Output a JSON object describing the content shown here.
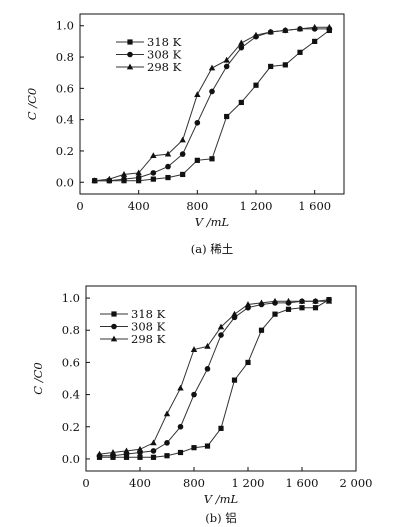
{
  "chart_data": [
    {
      "type": "line",
      "xlabel": "V /mL",
      "ylabel": "C /C0",
      "caption": "(a) 稀土",
      "xlim": [
        0,
        1800
      ],
      "ylim": [
        0,
        1.0
      ],
      "xticks": [
        {
          "v": 0,
          "label": "0"
        },
        {
          "v": 400,
          "label": "400"
        },
        {
          "v": 800,
          "label": "800"
        },
        {
          "v": 1200,
          "label": "1 200"
        },
        {
          "v": 1600,
          "label": "1 600"
        }
      ],
      "yticks": [
        {
          "v": 0,
          "label": "0.0"
        },
        {
          "v": 0.2,
          "label": "0.2"
        },
        {
          "v": 0.4,
          "label": "0.4"
        },
        {
          "v": 0.6,
          "label": "0.6"
        },
        {
          "v": 0.8,
          "label": "0.8"
        },
        {
          "v": 1.0,
          "label": "1.0"
        }
      ],
      "legend_position": "top-left",
      "series": [
        {
          "name": "318 K",
          "marker": "square",
          "x": [
            100,
            200,
            300,
            400,
            500,
            600,
            700,
            800,
            900,
            1000,
            1100,
            1200,
            1300,
            1400,
            1500,
            1600,
            1700
          ],
          "y": [
            0.01,
            0.01,
            0.01,
            0.01,
            0.02,
            0.03,
            0.05,
            0.14,
            0.15,
            0.42,
            0.51,
            0.62,
            0.74,
            0.75,
            0.83,
            0.9,
            0.97
          ]
        },
        {
          "name": "308 K",
          "marker": "circle",
          "x": [
            100,
            200,
            300,
            400,
            500,
            600,
            700,
            800,
            900,
            1000,
            1100,
            1200,
            1300,
            1400,
            1500,
            1600,
            1700
          ],
          "y": [
            0.01,
            0.01,
            0.02,
            0.03,
            0.06,
            0.1,
            0.18,
            0.38,
            0.58,
            0.74,
            0.86,
            0.93,
            0.96,
            0.97,
            0.98,
            0.98,
            0.98
          ]
        },
        {
          "name": "298 K",
          "marker": "triangle",
          "x": [
            100,
            200,
            300,
            400,
            500,
            600,
            700,
            800,
            900,
            1000,
            1100,
            1200,
            1300,
            1400,
            1500,
            1600,
            1700
          ],
          "y": [
            0.01,
            0.02,
            0.05,
            0.06,
            0.17,
            0.18,
            0.27,
            0.56,
            0.73,
            0.78,
            0.89,
            0.94,
            0.96,
            0.97,
            0.98,
            0.99,
            0.99
          ]
        }
      ]
    },
    {
      "type": "line",
      "xlabel": "V /mL",
      "ylabel": "C /C0",
      "caption": "(b) 铝",
      "xlim": [
        0,
        2000
      ],
      "ylim": [
        0,
        1.0
      ],
      "xticks": [
        {
          "v": 0,
          "label": "0"
        },
        {
          "v": 400,
          "label": "400"
        },
        {
          "v": 800,
          "label": "800"
        },
        {
          "v": 1200,
          "label": "1 200"
        },
        {
          "v": 1600,
          "label": "1 600"
        },
        {
          "v": 2000,
          "label": "2 000"
        }
      ],
      "yticks": [
        {
          "v": 0,
          "label": "0.0"
        },
        {
          "v": 0.2,
          "label": "0.2"
        },
        {
          "v": 0.4,
          "label": "0.4"
        },
        {
          "v": 0.6,
          "label": "0.6"
        },
        {
          "v": 0.8,
          "label": "0.8"
        },
        {
          "v": 1.0,
          "label": "1.0"
        }
      ],
      "legend_position": "top-left",
      "series": [
        {
          "name": "318 K",
          "marker": "square",
          "x": [
            100,
            200,
            300,
            400,
            500,
            600,
            700,
            800,
            900,
            1000,
            1100,
            1200,
            1300,
            1400,
            1500,
            1600,
            1700,
            1800
          ],
          "y": [
            0.01,
            0.01,
            0.01,
            0.01,
            0.01,
            0.02,
            0.04,
            0.07,
            0.08,
            0.19,
            0.49,
            0.6,
            0.8,
            0.9,
            0.93,
            0.94,
            0.94,
            0.99
          ]
        },
        {
          "name": "308 K",
          "marker": "circle",
          "x": [
            100,
            200,
            300,
            400,
            500,
            600,
            700,
            800,
            900,
            1000,
            1100,
            1200,
            1300,
            1400,
            1500,
            1600,
            1700,
            1800
          ],
          "y": [
            0.02,
            0.02,
            0.03,
            0.04,
            0.05,
            0.1,
            0.2,
            0.4,
            0.56,
            0.77,
            0.88,
            0.94,
            0.96,
            0.97,
            0.97,
            0.98,
            0.98,
            0.99
          ]
        },
        {
          "name": "298 K",
          "marker": "triangle",
          "x": [
            100,
            200,
            300,
            400,
            500,
            600,
            700,
            800,
            900,
            1000,
            1100,
            1200,
            1300,
            1400,
            1500,
            1600,
            1700,
            1800
          ],
          "y": [
            0.03,
            0.04,
            0.05,
            0.06,
            0.1,
            0.28,
            0.44,
            0.68,
            0.7,
            0.82,
            0.9,
            0.96,
            0.97,
            0.98,
            0.98,
            0.98,
            0.98,
            0.98
          ]
        }
      ]
    }
  ]
}
